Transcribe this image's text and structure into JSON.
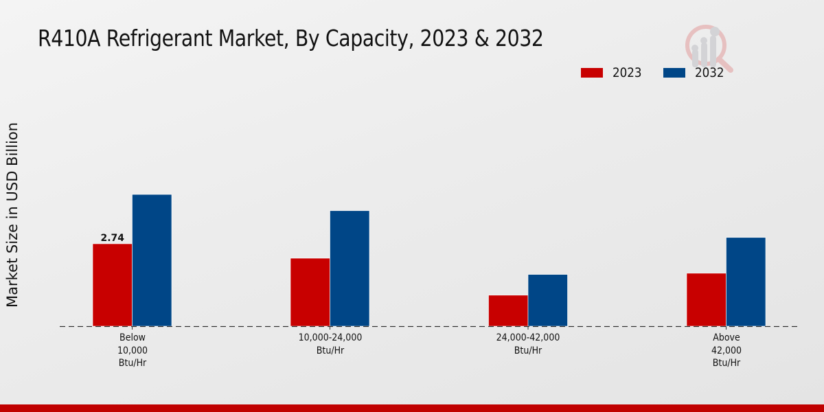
{
  "chart_data": {
    "type": "bar",
    "title": "R410A Refrigerant Market, By Capacity, 2023 & 2032",
    "xlabel": "",
    "ylabel": "Market Size in USD Billion",
    "categories": [
      [
        "Below",
        "10,000",
        "Btu/Hr"
      ],
      [
        "10,000-24,000",
        "Btu/Hr"
      ],
      [
        "24,000-42,000",
        "Btu/Hr"
      ],
      [
        "Above",
        "42,000",
        "Btu/Hr"
      ]
    ],
    "series": [
      {
        "name": "2023",
        "color": "#c80000",
        "values": [
          2.74,
          2.26,
          1.03,
          1.76
        ]
      },
      {
        "name": "2032",
        "color": "#004687",
        "values": [
          4.38,
          3.84,
          1.72,
          2.95
        ]
      }
    ],
    "data_labels": [
      {
        "series": "2023",
        "category_index": 0,
        "text": "2.74"
      }
    ],
    "ylim": [
      0,
      4.8
    ],
    "grid": false,
    "baseline": "dashed",
    "legend_position": "top-right"
  },
  "footer": {
    "accent_color": "#c00000"
  },
  "watermark": {
    "icon": "analytics-magnifier-logo-icon"
  }
}
